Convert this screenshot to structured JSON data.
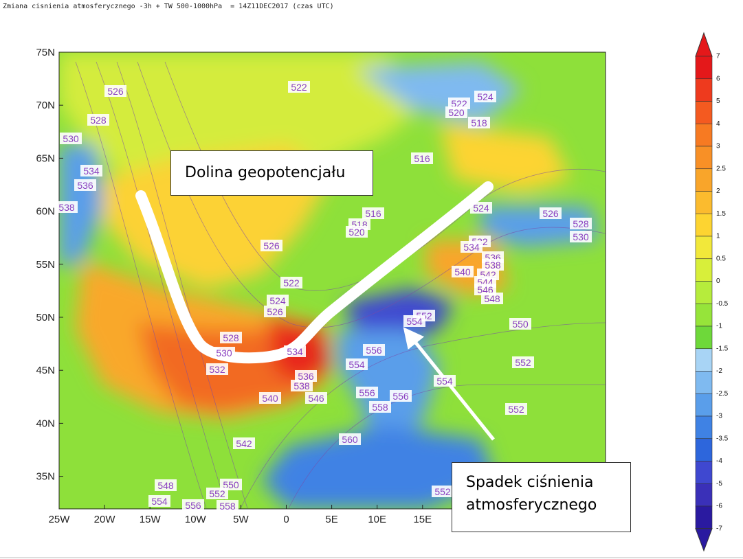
{
  "header": {
    "title": "Zmiana cisnienia atmosferycznego -3h + TW 500-1000hPa  = 14Z11DEC2017 (czas UTC)"
  },
  "map": {
    "lat_labels": [
      "75N",
      "70N",
      "65N",
      "60N",
      "55N",
      "50N",
      "45N",
      "40N",
      "35N"
    ],
    "lon_labels": [
      "25W",
      "20W",
      "15W",
      "10W",
      "5W",
      "0",
      "5E",
      "10E",
      "15E"
    ],
    "contour_labels": [
      "526",
      "522",
      "524",
      "522",
      "520",
      "518",
      "528",
      "530",
      "534",
      "536",
      "516",
      "538",
      "524",
      "526",
      "516",
      "518",
      "520",
      "528",
      "530",
      "526",
      "532",
      "534",
      "536",
      "538",
      "540",
      "542",
      "544",
      "546",
      "548",
      "522",
      "524",
      "526",
      "552",
      "554",
      "550",
      "528",
      "530",
      "534",
      "556",
      "554",
      "532",
      "552",
      "536",
      "538",
      "546",
      "540",
      "556",
      "556",
      "554",
      "558",
      "552",
      "542",
      "560",
      "548",
      "550",
      "554",
      "552",
      "556",
      "558",
      "552"
    ],
    "annotations": [
      "Dolina geopotencjału",
      "Spadek ciśnienia atmosferycznego"
    ]
  },
  "colorbar": {
    "labels": [
      "7",
      "6",
      "5",
      "4",
      "3",
      "2.5",
      "2",
      "1.5",
      "1",
      "0.5",
      "0",
      "-0.5",
      "-1",
      "-1.5",
      "-2",
      "-2.5",
      "-3",
      "-3.5",
      "-4",
      "-5",
      "-6",
      "-7"
    ]
  }
}
